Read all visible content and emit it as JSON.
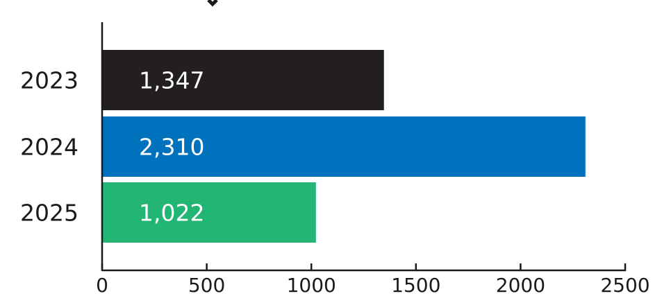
{
  "chart_data": {
    "type": "bar",
    "orientation": "horizontal",
    "categories": [
      "2023",
      "2024",
      "2025"
    ],
    "values": [
      1347,
      2310,
      1022
    ],
    "data_labels": [
      "1,347",
      "2,310",
      "1,022"
    ],
    "colors": [
      "#231f20",
      "#0071bc",
      "#22b573"
    ],
    "xticks": [
      "0",
      "500",
      "1000",
      "1500",
      "2000",
      "2500"
    ],
    "xlim": [
      0,
      2500
    ],
    "grid": false,
    "legend": "none"
  }
}
